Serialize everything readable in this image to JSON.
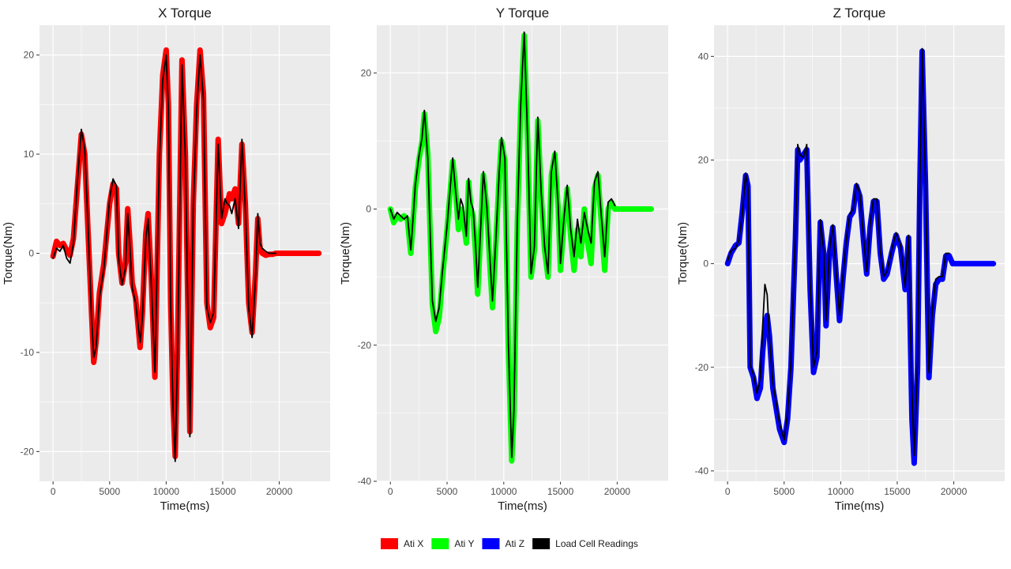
{
  "legend": {
    "entries": [
      {
        "label": "Ati X",
        "color": "#ff0000"
      },
      {
        "label": "Ati Y",
        "color": "#00ff00"
      },
      {
        "label": "Ati Z",
        "color": "#0000ff"
      },
      {
        "label": "Load Cell Readings",
        "color": "#000000"
      }
    ]
  },
  "chart_data": [
    {
      "type": "line",
      "title": "X Torque",
      "xlabel": "Time(ms)",
      "ylabel": "Torque(Nm)",
      "xlim": [
        -1200,
        24500
      ],
      "ylim": [
        -23,
        23
      ],
      "xticks": [
        0,
        5000,
        10000,
        15000,
        20000
      ],
      "yticks": [
        -20,
        -10,
        0,
        10,
        20
      ],
      "grid": true,
      "series": [
        {
          "name": "Ati X",
          "color": "#ff0000",
          "kind": "ati",
          "x": [
            0,
            300,
            600,
            900,
            1200,
            1500,
            1800,
            2100,
            2500,
            2800,
            3100,
            3400,
            3600,
            3800,
            4100,
            4500,
            5000,
            5300,
            5600,
            5800,
            6100,
            6400,
            6600,
            6800,
            7000,
            7300,
            7700,
            7900,
            8200,
            8400,
            8700,
            9000,
            9400,
            9700,
            10000,
            10200,
            10400,
            10600,
            10800,
            11000,
            11200,
            11400,
            11700,
            12100,
            12400,
            12700,
            13000,
            13300,
            13600,
            13900,
            14200,
            14600,
            14900,
            15200,
            15400,
            15600,
            15800,
            16100,
            16400,
            16700,
            17000,
            17300,
            17600,
            17900,
            18100,
            18300,
            18500,
            18800,
            19100,
            19400,
            19700,
            20000,
            21000,
            22000,
            23000,
            23500
          ],
          "y": [
            -0.3,
            1.2,
            0.8,
            1.0,
            0.3,
            -0.2,
            1.5,
            6.0,
            12.0,
            10.0,
            2.0,
            -6.0,
            -11.0,
            -9.0,
            -4.0,
            -1.0,
            5.0,
            7.0,
            6.5,
            0.0,
            -3.0,
            -1.0,
            4.5,
            1.0,
            -3.0,
            -4.5,
            -9.5,
            -6.0,
            2.0,
            4.0,
            -3.0,
            -12.5,
            10.0,
            18.0,
            20.5,
            15.0,
            -5.0,
            -15.0,
            -20.5,
            -10.0,
            5.0,
            19.5,
            10.0,
            -18.0,
            5.0,
            15.0,
            20.5,
            16.0,
            -5.0,
            -7.5,
            -6.5,
            11.5,
            3.0,
            4.0,
            5.0,
            6.0,
            5.5,
            6.5,
            3.0,
            11.0,
            5.0,
            -5.0,
            -8.0,
            -2.0,
            3.5,
            0.5,
            0.0,
            -0.2,
            -0.1,
            -0.1,
            0.0,
            0.0,
            0.0,
            0.0,
            0.0,
            0.0
          ]
        },
        {
          "name": "Load Cell Readings",
          "color": "#000000",
          "kind": "load",
          "x": [
            0,
            300,
            600,
            900,
            1200,
            1500,
            1800,
            2100,
            2500,
            2800,
            3100,
            3400,
            3600,
            3800,
            4100,
            4500,
            5000,
            5300,
            5600,
            5800,
            6100,
            6400,
            6600,
            6800,
            7000,
            7300,
            7700,
            7900,
            8200,
            8400,
            8700,
            9000,
            9400,
            9700,
            10000,
            10200,
            10400,
            10600,
            10800,
            11000,
            11200,
            11400,
            11700,
            12100,
            12400,
            12700,
            13000,
            13300,
            13600,
            13900,
            14200,
            14600,
            14900,
            15200,
            15400,
            15600,
            15800,
            16100,
            16400,
            16700,
            17000,
            17300,
            17600,
            17900,
            18100,
            18300,
            18500,
            18800,
            19100,
            19400,
            19700
          ],
          "y": [
            -0.5,
            0.5,
            0.2,
            0.8,
            -0.5,
            -1.0,
            1.0,
            6.5,
            12.5,
            10.5,
            2.5,
            -6.5,
            -10.5,
            -9.5,
            -4.5,
            -1.5,
            5.5,
            7.5,
            6.8,
            -0.5,
            -3.2,
            -1.5,
            4.0,
            0.5,
            -3.5,
            -5.0,
            -9.0,
            -6.5,
            1.5,
            3.5,
            -3.5,
            -12.0,
            9.5,
            17.5,
            20.0,
            14.5,
            -5.5,
            -15.5,
            -21.0,
            -10.5,
            4.5,
            19.0,
            9.5,
            -18.5,
            4.5,
            14.5,
            20.0,
            15.5,
            -5.5,
            -7.0,
            -6.0,
            11.0,
            3.5,
            5.5,
            5.0,
            4.8,
            4.0,
            5.5,
            2.5,
            11.5,
            4.5,
            -5.5,
            -8.5,
            -2.5,
            4.0,
            1.0,
            0.5,
            0.2,
            0.0,
            0.0,
            0.0
          ]
        }
      ]
    },
    {
      "type": "line",
      "title": "Y Torque",
      "xlabel": "Time(ms)",
      "ylabel": "Torque(Nm)",
      "xlim": [
        -1200,
        24500
      ],
      "ylim": [
        -40,
        27
      ],
      "xticks": [
        0,
        5000,
        10000,
        15000,
        20000
      ],
      "yticks": [
        -40,
        -20,
        0,
        20
      ],
      "grid": true,
      "series": [
        {
          "name": "Ati Y",
          "color": "#00ff00",
          "kind": "ati",
          "x": [
            0,
            300,
            600,
            900,
            1200,
            1500,
            1800,
            2000,
            2200,
            2500,
            2800,
            3000,
            3300,
            3700,
            4000,
            4300,
            4600,
            5000,
            5300,
            5500,
            5700,
            6000,
            6200,
            6400,
            6700,
            6900,
            7100,
            7300,
            7500,
            7700,
            8000,
            8200,
            8500,
            8800,
            9000,
            9300,
            9600,
            9800,
            10100,
            10400,
            10700,
            10900,
            11200,
            11500,
            11800,
            12100,
            12400,
            12700,
            13000,
            13300,
            13600,
            13900,
            14200,
            14500,
            14800,
            15000,
            15300,
            15600,
            15900,
            16200,
            16500,
            16800,
            17100,
            17400,
            17700,
            18000,
            18300,
            18600,
            18900,
            19200,
            19500,
            19800,
            20500,
            21500,
            23000
          ],
          "y": [
            0.0,
            -2.0,
            -1.0,
            -1.5,
            -1.0,
            -1.5,
            -6.5,
            -2.0,
            3.0,
            7.0,
            10.0,
            14.0,
            8.0,
            -14.0,
            -18.0,
            -16.0,
            -10.0,
            -3.0,
            3.0,
            7.0,
            4.0,
            -3.0,
            0.0,
            -1.0,
            -5.0,
            4.0,
            0.0,
            -1.0,
            -6.0,
            -12.5,
            -2.0,
            5.0,
            0.0,
            -9.0,
            -14.5,
            -5.0,
            5.0,
            10.0,
            7.0,
            -20.0,
            -37.0,
            -30.0,
            -2.0,
            15.0,
            25.5,
            10.0,
            -10.0,
            -6.0,
            13.0,
            2.0,
            -6.0,
            -10.0,
            5.0,
            8.0,
            0.0,
            -9.0,
            -2.0,
            3.0,
            -4.0,
            -9.0,
            -3.0,
            -7.0,
            0.0,
            -5.0,
            -8.0,
            3.0,
            5.0,
            -2.0,
            -9.0,
            0.0,
            1.0,
            0.0,
            0.0,
            0.0,
            0.0
          ]
        },
        {
          "name": "Load Cell Readings",
          "color": "#000000",
          "kind": "load",
          "x": [
            0,
            300,
            600,
            900,
            1200,
            1500,
            1800,
            2000,
            2200,
            2500,
            2800,
            3000,
            3300,
            3700,
            4000,
            4300,
            4600,
            5000,
            5300,
            5500,
            5700,
            6000,
            6200,
            6400,
            6700,
            6900,
            7100,
            7300,
            7500,
            7700,
            8000,
            8200,
            8500,
            8800,
            9000,
            9300,
            9600,
            9800,
            10100,
            10400,
            10700,
            10900,
            11200,
            11500,
            11800,
            12100,
            12400,
            12700,
            13000,
            13300,
            13600,
            13900,
            14200,
            14500,
            14800,
            15000,
            15300,
            15600,
            15900,
            16200,
            16500,
            16800,
            17100,
            17400,
            17700,
            18000,
            18300,
            18600,
            18900,
            19200,
            19500,
            19800
          ],
          "y": [
            0.0,
            -1.5,
            -0.5,
            -1.0,
            -1.5,
            -1.0,
            -6.0,
            -1.5,
            3.5,
            7.5,
            10.5,
            14.5,
            7.5,
            -13.5,
            -16.5,
            -14.5,
            -9.0,
            -2.5,
            3.5,
            7.5,
            3.5,
            -1.5,
            1.5,
            0.5,
            -4.0,
            4.5,
            1.0,
            0.0,
            -5.0,
            -11.5,
            -1.5,
            5.5,
            0.5,
            -8.0,
            -13.5,
            -4.5,
            5.5,
            10.5,
            7.5,
            -19.5,
            -36.5,
            -29.5,
            -1.5,
            15.5,
            26.0,
            10.5,
            -9.5,
            -5.5,
            13.5,
            2.5,
            -5.5,
            -9.5,
            5.5,
            8.5,
            0.5,
            -8.0,
            -1.5,
            3.5,
            -3.0,
            -7.0,
            -1.5,
            -5.0,
            -0.5,
            -3.0,
            -5.0,
            4.0,
            5.5,
            -1.0,
            -7.0,
            1.0,
            1.5,
            0.5
          ]
        }
      ]
    },
    {
      "type": "line",
      "title": "Z Torque",
      "xlabel": "Time(ms)",
      "ylabel": "Torque(Nm)",
      "xlim": [
        -1200,
        24500
      ],
      "ylim": [
        -42,
        46
      ],
      "xticks": [
        0,
        5000,
        10000,
        15000,
        20000
      ],
      "yticks": [
        -40,
        -20,
        0,
        20,
        40
      ],
      "grid": true,
      "series": [
        {
          "name": "Ati Z",
          "color": "#0000ff",
          "kind": "ati",
          "x": [
            0,
            300,
            700,
            1000,
            1300,
            1600,
            1800,
            2000,
            2300,
            2600,
            2900,
            3100,
            3300,
            3500,
            3700,
            4000,
            4300,
            4600,
            5000,
            5300,
            5600,
            6000,
            6200,
            6400,
            6700,
            7000,
            7300,
            7600,
            7900,
            8200,
            8500,
            8700,
            9000,
            9300,
            9600,
            9900,
            10200,
            10500,
            10800,
            11100,
            11400,
            11700,
            12000,
            12300,
            12600,
            12900,
            13200,
            13500,
            13800,
            14100,
            14500,
            14900,
            15300,
            15700,
            16000,
            16300,
            16500,
            16800,
            17000,
            17200,
            17500,
            17800,
            18100,
            18400,
            18700,
            19000,
            19300,
            19600,
            19900,
            20500,
            22000,
            23500
          ],
          "y": [
            0.0,
            2.0,
            3.5,
            4.0,
            10.0,
            17.0,
            15.0,
            -20.0,
            -22.0,
            -26.0,
            -24.0,
            -17.0,
            -12.0,
            -10.0,
            -14.0,
            -24.0,
            -28.0,
            -32.0,
            -34.5,
            -30.0,
            -20.0,
            5.0,
            22.0,
            20.0,
            21.0,
            22.0,
            -5.0,
            -21.0,
            -18.0,
            8.0,
            2.0,
            -12.0,
            2.0,
            7.0,
            -2.0,
            -11.0,
            -3.0,
            4.0,
            9.0,
            10.0,
            15.0,
            13.0,
            5.0,
            -2.0,
            7.0,
            12.0,
            12.0,
            2.0,
            -3.0,
            -2.0,
            2.0,
            5.5,
            3.0,
            -5.0,
            5.0,
            -30.0,
            -38.5,
            -20.0,
            15.0,
            41.0,
            15.0,
            -22.0,
            -10.0,
            -4.0,
            -3.0,
            -3.0,
            1.5,
            1.5,
            0.0,
            0.0,
            0.0,
            0.0
          ]
        },
        {
          "name": "Load Cell Readings",
          "color": "#000000",
          "kind": "load",
          "x": [
            0,
            300,
            700,
            1000,
            1300,
            1600,
            1800,
            2000,
            2300,
            2600,
            2900,
            3100,
            3300,
            3500,
            3700,
            4000,
            4300,
            4600,
            5000,
            5300,
            5600,
            6000,
            6200,
            6400,
            6700,
            7000,
            7300,
            7600,
            7900,
            8200,
            8500,
            8700,
            9000,
            9300,
            9600,
            9900,
            10200,
            10500,
            10800,
            11100,
            11400,
            11700,
            12000,
            12300,
            12600,
            12900,
            13200,
            13500,
            13800,
            14100,
            14500,
            14900,
            15300,
            15700,
            16000,
            16300,
            16500,
            16800,
            17000,
            17200,
            17500,
            17800,
            18100,
            18400,
            18700,
            19000,
            19300,
            19600
          ],
          "y": [
            0.5,
            2.5,
            3.0,
            4.5,
            9.5,
            17.5,
            14.5,
            -19.5,
            -21.5,
            -25.0,
            -22.0,
            -12.0,
            -4.0,
            -6.0,
            -14.5,
            -23.0,
            -27.0,
            -31.0,
            -34.0,
            -29.0,
            -19.0,
            6.0,
            23.0,
            21.0,
            20.5,
            23.0,
            -4.0,
            -20.0,
            -17.0,
            8.5,
            2.5,
            -11.0,
            2.5,
            7.5,
            -1.5,
            -10.0,
            -2.5,
            4.5,
            9.5,
            10.5,
            15.5,
            13.5,
            5.5,
            -1.5,
            7.5,
            12.5,
            12.5,
            2.5,
            -2.5,
            -1.5,
            2.5,
            6.0,
            3.5,
            -4.5,
            5.5,
            -25.0,
            -37.0,
            -19.0,
            16.0,
            41.5,
            15.5,
            -21.0,
            -9.0,
            -3.0,
            -2.5,
            -2.5,
            2.0,
            2.0
          ]
        }
      ]
    }
  ]
}
